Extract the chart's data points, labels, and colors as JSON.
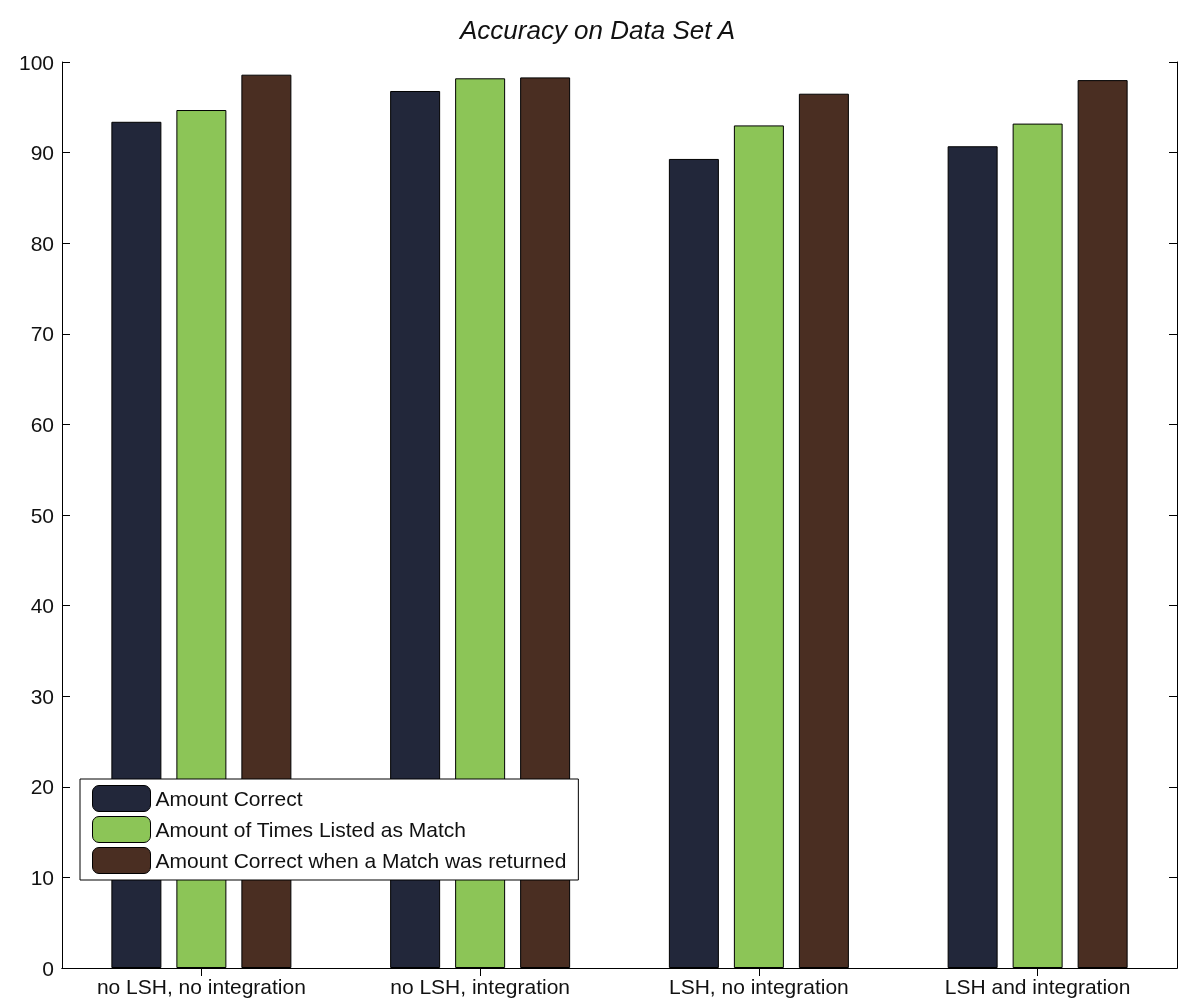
{
  "chart_data": {
    "type": "bar",
    "title": "Accuracy on Data Set A",
    "categories": [
      "no LSH, no integration",
      "no LSH, integration",
      "LSH, no integration",
      "LSH and integration"
    ],
    "series": [
      {
        "name": "Amount Correct",
        "color": "#22273a",
        "values": [
          93.4,
          96.8,
          89.3,
          90.7
        ]
      },
      {
        "name": "Amount of Times Listed as Match",
        "color": "#8cc557",
        "values": [
          94.7,
          98.2,
          93.0,
          93.2
        ]
      },
      {
        "name": "Amount Correct when a Match was returned",
        "color": "#4a2e22",
        "values": [
          98.6,
          98.3,
          96.5,
          98.0
        ]
      }
    ],
    "ylim": [
      0,
      100
    ],
    "yticks": [
      0,
      10,
      20,
      30,
      40,
      50,
      60,
      70,
      80,
      90,
      100
    ],
    "grid": false,
    "legend": "bottom left"
  }
}
